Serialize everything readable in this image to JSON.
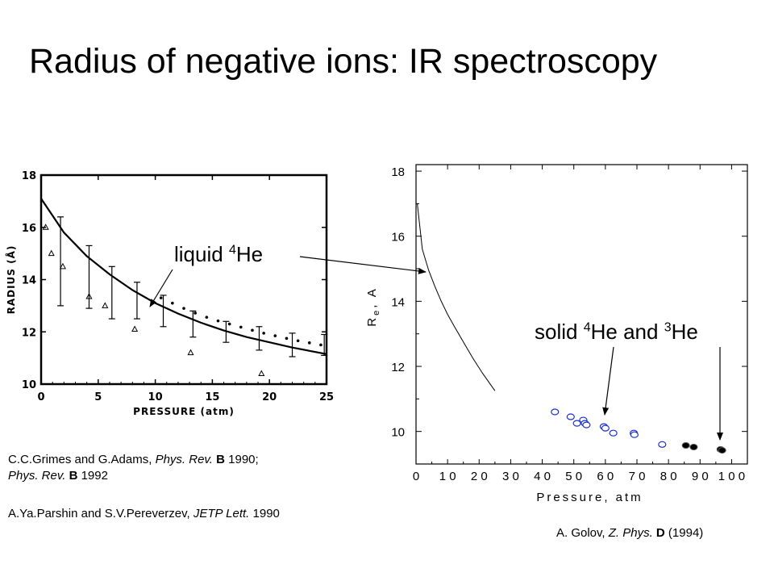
{
  "title": "Radius of negative ions: IR spectroscopy",
  "labels": {
    "liquid_prefix": "liquid ",
    "liquid_sup": "4",
    "liquid_suffix": "He",
    "solid_prefix": "solid ",
    "solid_sup1": "4",
    "solid_mid": "He and ",
    "solid_sup2": "3",
    "solid_suffix": "He"
  },
  "captions": {
    "grimes": {
      "authors": "C.C.Grimes and G.Adams, ",
      "journal1": "Phys. Rev.",
      "vol1": " B",
      "year1": " 1990;",
      "journal2": "Phys. Rev.",
      "vol2": " B",
      "year2": " 1992"
    },
    "parshin": {
      "authors": "A.Ya.Parshin and S.V.Pereverzev, ",
      "journal": "JETP Lett.",
      "year": " 1990"
    },
    "golov": {
      "authors": "A. Golov, ",
      "journal": "Z. Phys.",
      "vol": " D",
      "year": " (1994)"
    }
  },
  "chart_data": [
    {
      "type": "scatter",
      "xlabel": "PRESSURE  (atm)",
      "ylabel": "RADIUS (Å)",
      "xlim": [
        0,
        25
      ],
      "ylim": [
        10,
        18
      ],
      "xticks": [
        0,
        5,
        10,
        15,
        20,
        25
      ],
      "yticks": [
        10,
        12,
        14,
        16,
        18
      ],
      "series": [
        {
          "style": "errorbar",
          "points": [
            {
              "x": 1.7,
              "y": 14.7,
              "err": 1.7
            },
            {
              "x": 4.2,
              "y": 14.1,
              "err": 1.2
            },
            {
              "x": 6.2,
              "y": 13.5,
              "err": 1.0
            },
            {
              "x": 8.4,
              "y": 13.2,
              "err": 0.7
            },
            {
              "x": 10.7,
              "y": 12.8,
              "err": 0.6
            },
            {
              "x": 13.3,
              "y": 12.3,
              "err": 0.5
            },
            {
              "x": 16.2,
              "y": 12.0,
              "err": 0.4
            },
            {
              "x": 19.1,
              "y": 11.75,
              "err": 0.45
            },
            {
              "x": 22.0,
              "y": 11.5,
              "err": 0.45
            },
            {
              "x": 24.8,
              "y": 11.5,
              "err": 0.4
            }
          ]
        },
        {
          "style": "triangles",
          "x": [
            0.4,
            0.9,
            1.9,
            4.2,
            5.6,
            8.2,
            13.1,
            19.3
          ],
          "y": [
            16.0,
            15.0,
            14.5,
            13.35,
            13.0,
            12.1,
            11.2,
            10.4
          ]
        },
        {
          "style": "solid-curve",
          "x": [
            0,
            2,
            4,
            6,
            8,
            10,
            12,
            14,
            16,
            18,
            20,
            22,
            25
          ],
          "y": [
            17.1,
            15.8,
            14.9,
            14.2,
            13.6,
            13.1,
            12.7,
            12.35,
            12.05,
            11.8,
            11.6,
            11.4,
            11.15
          ]
        },
        {
          "style": "dotted-curve",
          "x": [
            10.5,
            11.5,
            12.5,
            13.5,
            14.5,
            15.5,
            16.5,
            17.5,
            18.5,
            19.5,
            20.5,
            21.5,
            22.5,
            23.5,
            24.5
          ],
          "y": [
            13.3,
            13.1,
            12.9,
            12.72,
            12.56,
            12.42,
            12.3,
            12.18,
            12.06,
            11.95,
            11.85,
            11.75,
            11.66,
            11.58,
            11.5
          ]
        }
      ]
    },
    {
      "type": "scatter",
      "xlabel": "Pressure, atm",
      "ylabel": "R",
      "ylabel_sub": "e",
      "ylabel_unit": ", A",
      "xlim": [
        0,
        105
      ],
      "ylim": [
        9,
        18.2
      ],
      "xticks": [
        0,
        10,
        20,
        30,
        40,
        50,
        60,
        70,
        80,
        90,
        100
      ],
      "yticks": [
        10,
        12,
        14,
        16,
        18
      ],
      "series": [
        {
          "style": "line",
          "x": [
            0.4,
            2,
            4,
            6,
            8,
            10,
            12,
            15,
            18,
            21,
            25
          ],
          "y": [
            17.0,
            15.6,
            14.95,
            14.45,
            14.0,
            13.6,
            13.25,
            12.75,
            12.25,
            11.8,
            11.25
          ]
        },
        {
          "style": "open-circles",
          "x": [
            44,
            49,
            51,
            53,
            53.5,
            54,
            59.5,
            60,
            62.5,
            69,
            69.2,
            78
          ],
          "y": [
            10.6,
            10.45,
            10.25,
            10.35,
            10.25,
            10.2,
            10.15,
            10.1,
            9.95,
            9.95,
            9.9,
            9.6
          ]
        },
        {
          "style": "filled-circles",
          "x": [
            85.5,
            88,
            96.5,
            97
          ],
          "y": [
            9.57,
            9.52,
            9.45,
            9.42
          ]
        }
      ]
    }
  ]
}
